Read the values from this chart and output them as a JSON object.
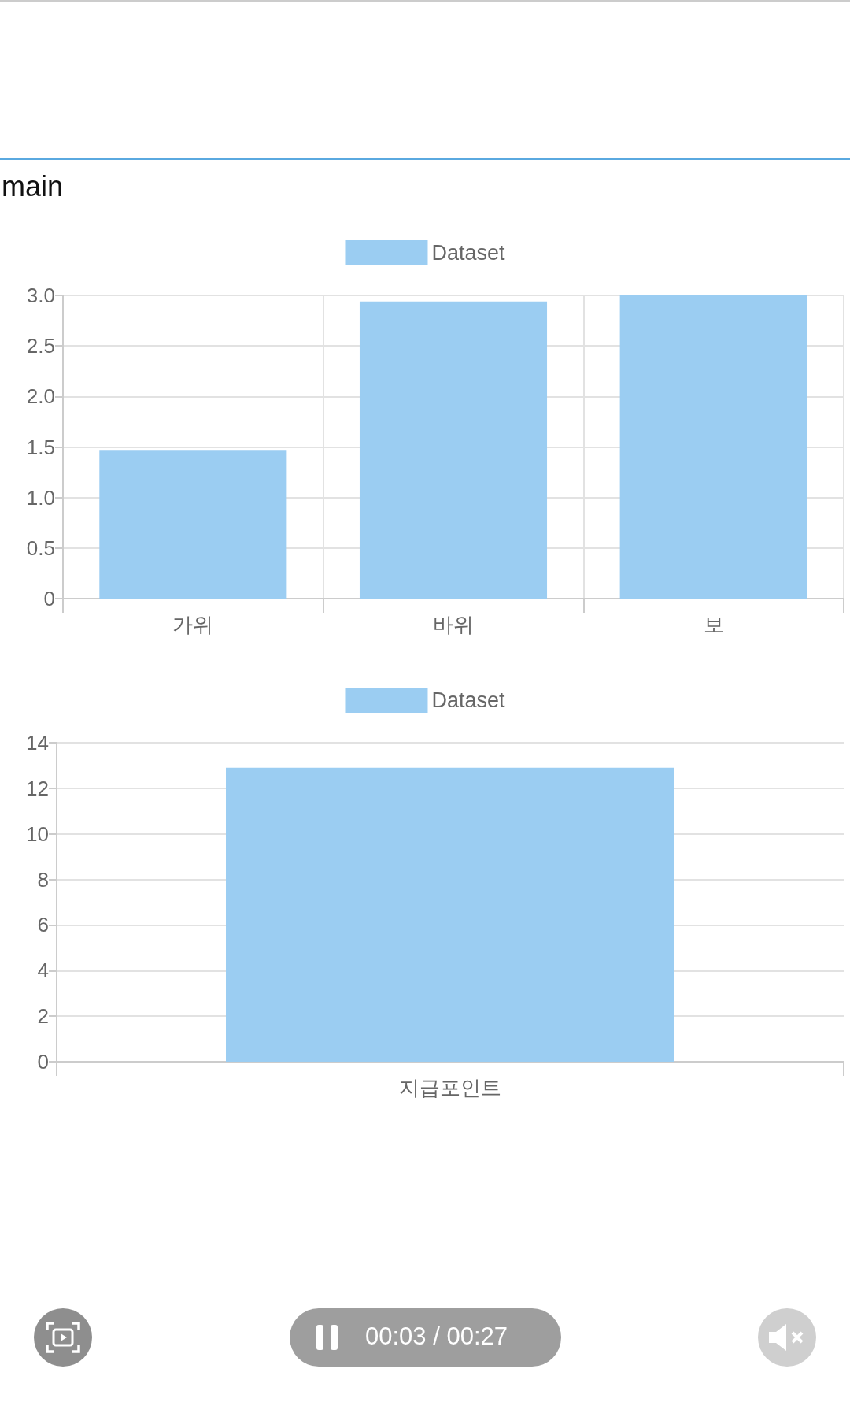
{
  "chart_data": [
    {
      "type": "bar",
      "title": "main",
      "categories": [
        "가위",
        "바위",
        "보"
      ],
      "series": [
        {
          "name": "Dataset",
          "color": "#9bcdf2",
          "values": [
            1.47,
            2.94,
            3.0
          ]
        }
      ],
      "ylim": [
        0,
        3.0
      ],
      "yticks": [
        {
          "value": 0,
          "label": "0"
        },
        {
          "value": 0.5,
          "label": "0.5"
        },
        {
          "value": 1,
          "label": "1.0"
        },
        {
          "value": 1.5,
          "label": "1.5"
        },
        {
          "value": 2,
          "label": "2.0"
        },
        {
          "value": 2.5,
          "label": "2.5"
        },
        {
          "value": 3,
          "label": "3.0"
        }
      ],
      "grid": true,
      "legend": "top"
    },
    {
      "type": "bar",
      "categories": [
        "지급포인트"
      ],
      "series": [
        {
          "name": "Dataset",
          "color": "#9bcdf2",
          "values": [
            12.9
          ]
        }
      ],
      "ylim": [
        0,
        14
      ],
      "yticks": [
        0,
        2,
        4,
        6,
        8,
        10,
        12,
        14
      ],
      "grid": "y",
      "legend": "top",
      "annotations": [
        "00:03 / 00:27"
      ]
    }
  ]
}
